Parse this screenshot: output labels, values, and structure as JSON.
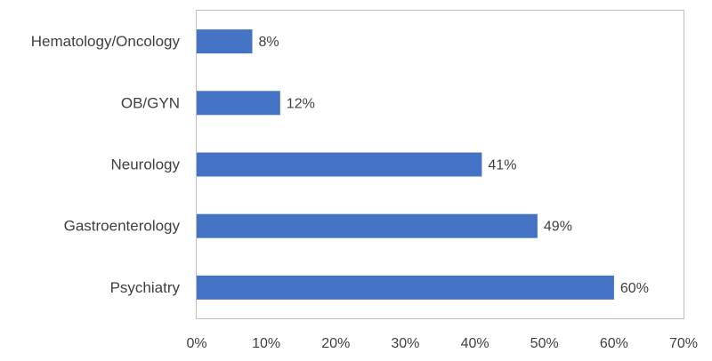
{
  "chart_data": {
    "type": "bar",
    "orientation": "horizontal",
    "categories": [
      "Hematology/Oncology",
      "OB/GYN",
      "Neurology",
      "Gastroenterology",
      "Psychiatry"
    ],
    "values": [
      8,
      12,
      41,
      49,
      60
    ],
    "data_labels": [
      "8%",
      "12%",
      "41%",
      "49%",
      "60%"
    ],
    "xlim": [
      0,
      70
    ],
    "xticks": [
      0,
      10,
      20,
      30,
      40,
      50,
      60,
      70
    ],
    "xtick_labels": [
      "0%",
      "10%",
      "20%",
      "30%",
      "40%",
      "50%",
      "60%",
      "70%"
    ],
    "title": "",
    "xlabel": "",
    "ylabel": "",
    "grid": false,
    "legend": "none",
    "bar_color": "#4472C4",
    "frame_color": "#BFBFBF",
    "text_color": "#404040"
  }
}
